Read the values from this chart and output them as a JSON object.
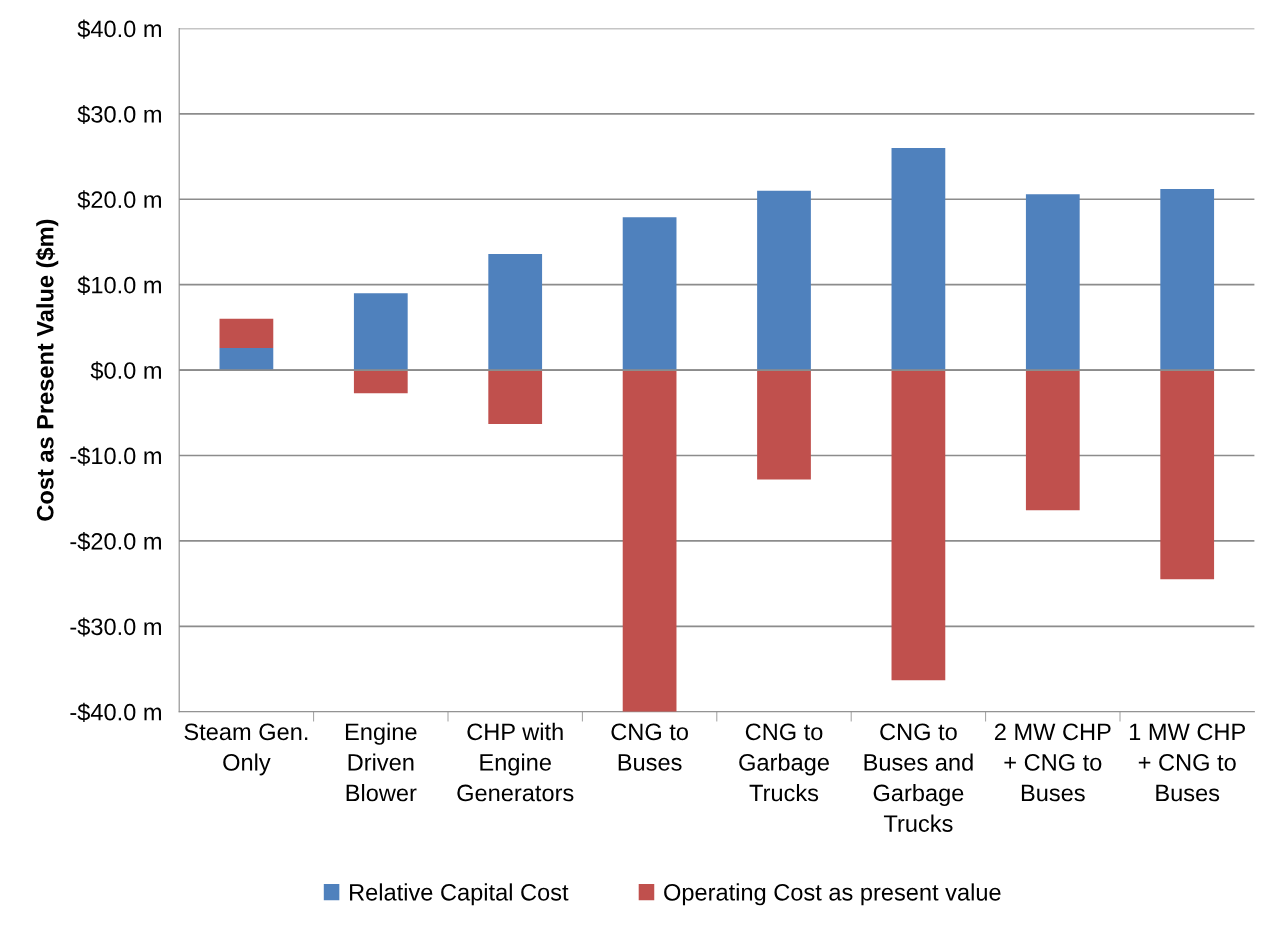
{
  "chart_data": {
    "type": "bar",
    "stacked": true,
    "ylabel": "Cost as Present Value ($m)",
    "categories": [
      "Steam Gen.\nOnly",
      "Engine\nDriven\nBlower",
      "CHP with\nEngine\nGenerators",
      "CNG to\nBuses",
      "CNG to\nGarbage\nTrucks",
      "CNG to\nBuses and\nGarbage\nTrucks",
      "2 MW CHP\n+ CNG to\nBuses",
      "1 MW CHP\n+ CNG to\nBuses"
    ],
    "series": [
      {
        "name": "Relative Capital Cost",
        "color": "#4f81bd",
        "values": [
          2.6,
          9.0,
          13.6,
          17.9,
          21.0,
          26.0,
          20.6,
          21.2
        ]
      },
      {
        "name": "Operating Cost as present value",
        "color": "#c0504d",
        "values": [
          3.4,
          -2.7,
          -6.3,
          -40.0,
          -12.8,
          -36.3,
          -16.4,
          -24.5
        ]
      }
    ],
    "ylim": [
      -40,
      40
    ],
    "yticks": [
      {
        "value": -40,
        "label": "-$40.0 m"
      },
      {
        "value": -30,
        "label": "-$30.0 m"
      },
      {
        "value": -20,
        "label": "-$20.0 m"
      },
      {
        "value": -10,
        "label": "-$10.0 m"
      },
      {
        "value": 0,
        "label": "$0.0 m"
      },
      {
        "value": 10,
        "label": "$10.0 m"
      },
      {
        "value": 20,
        "label": "$20.0 m"
      },
      {
        "value": 30,
        "label": "$30.0 m"
      },
      {
        "value": 40,
        "label": "$40.0 m"
      }
    ],
    "grid": "y",
    "legend": "bottom"
  }
}
